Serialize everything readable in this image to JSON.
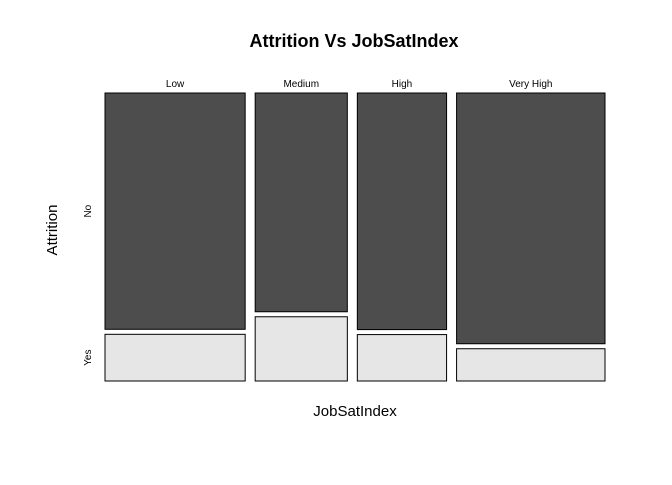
{
  "chart_data": {
    "type": "mosaic",
    "title": "Attrition Vs JobSatIndex",
    "xlabel": "JobSatIndex",
    "ylabel": "Attrition",
    "categories": [
      "Low",
      "Medium",
      "High",
      "Very High"
    ],
    "category_share": [
      0.289,
      0.19,
      0.184,
      0.306
    ],
    "levels": [
      "No",
      "Yes"
    ],
    "series": [
      {
        "name": "No",
        "values": [
          0.835,
          0.773,
          0.836,
          0.886
        ]
      },
      {
        "name": "Yes",
        "values": [
          0.165,
          0.227,
          0.164,
          0.114
        ]
      }
    ],
    "colors": {
      "No": "#4d4d4d",
      "Yes": "#e6e6e6",
      "border": "#000000"
    },
    "grid": false,
    "legend": "none"
  }
}
